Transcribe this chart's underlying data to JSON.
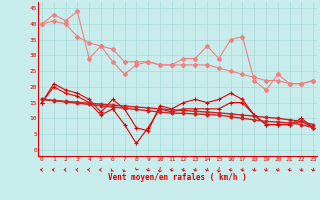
{
  "x": [
    0,
    1,
    2,
    3,
    4,
    5,
    6,
    7,
    8,
    9,
    10,
    11,
    12,
    13,
    14,
    15,
    16,
    17,
    18,
    19,
    20,
    21,
    22,
    23
  ],
  "line_light1": [
    40,
    43,
    41,
    44,
    29,
    33,
    28,
    24,
    27,
    28,
    27,
    27,
    29,
    29,
    33,
    29,
    35,
    36,
    22,
    19,
    24,
    21,
    21,
    22
  ],
  "line_light2": [
    40,
    41,
    40,
    36,
    34,
    33,
    32,
    28,
    28,
    28,
    27,
    27,
    27,
    27,
    27,
    26,
    25,
    24,
    23,
    22,
    22,
    21,
    21,
    22
  ],
  "line_dark1": [
    15,
    21,
    19,
    18,
    16,
    12,
    16,
    13,
    7,
    6,
    14,
    13,
    15,
    16,
    15,
    16,
    18,
    16,
    11,
    8,
    8,
    8,
    10,
    7
  ],
  "line_dark2": [
    15,
    20,
    18,
    17,
    15,
    11,
    13,
    8,
    2,
    7,
    13,
    12,
    13,
    13,
    13,
    13,
    15,
    15,
    11,
    8,
    8,
    8,
    9,
    7
  ],
  "line_trend1": [
    16,
    15.6,
    15.2,
    14.8,
    14.4,
    14.0,
    13.6,
    13.2,
    12.8,
    12.4,
    12.0,
    11.6,
    11.6,
    11.4,
    11.2,
    11.0,
    10.5,
    10.0,
    9.5,
    9.0,
    8.8,
    8.5,
    8.0,
    7.0
  ],
  "line_trend2": [
    16,
    15.7,
    15.4,
    15.1,
    14.8,
    14.5,
    14.2,
    13.9,
    13.6,
    13.3,
    13.0,
    12.7,
    12.5,
    12.2,
    12.0,
    11.7,
    11.4,
    11.0,
    10.7,
    10.3,
    10.0,
    9.5,
    9.0,
    8.0
  ],
  "color_light": "#f08080",
  "color_dark": "#dd0000",
  "color_trend": "#cc2222",
  "bg_color": "#c8ecec",
  "grid_color": "#a8d8d8",
  "axis_color": "#dd0000",
  "xlabel": "Vent moyen/en rafales ( km/h )",
  "ylabel_ticks": [
    0,
    5,
    10,
    15,
    20,
    25,
    30,
    35,
    40,
    45
  ],
  "ylim": [
    -2,
    47
  ],
  "xlim": [
    -0.3,
    23.3
  ],
  "arrow_angles_deg": [
    270,
    270,
    270,
    270,
    270,
    270,
    255,
    250,
    240,
    225,
    210,
    225,
    225,
    225,
    225,
    210,
    225,
    225,
    225,
    225,
    225,
    225,
    225,
    225
  ]
}
